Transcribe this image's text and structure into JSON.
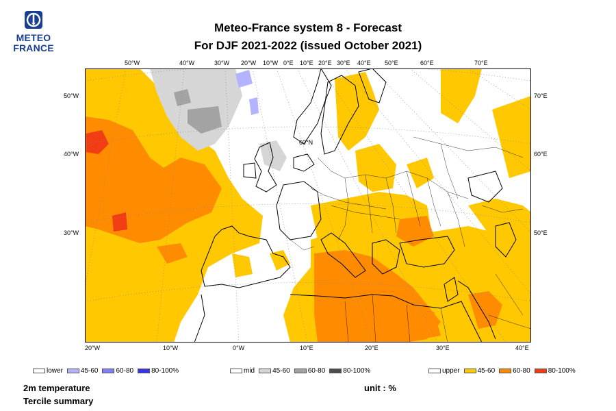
{
  "logo": {
    "line1": "METEO",
    "line2": "FRANCE"
  },
  "title": {
    "line1": "Meteo-France system 8  -  Forecast",
    "line2": "For DJF 2021-2022      (issued October 2021)"
  },
  "ticks": {
    "top": [
      "50°W",
      "40°W",
      "30°W",
      "20°W",
      "10°W",
      "0°E",
      "10°E",
      "20°E",
      "30°E",
      "40°E",
      "50°E",
      "60°E",
      "70°E"
    ],
    "bottom": [
      "20°W",
      "10°W",
      "0°W",
      "10°E",
      "20°E",
      "30°E",
      "40°E"
    ],
    "left": [
      "50°W",
      "40°W",
      "30°W"
    ],
    "right": [
      "70°E",
      "60°E",
      "50°E"
    ],
    "inner": "60°N"
  },
  "legend": {
    "lower": {
      "title": "lower",
      "items": [
        {
          "label": "45-60",
          "color": "#b3b3ff"
        },
        {
          "label": "60-80",
          "color": "#7f7fff"
        },
        {
          "label": "80-100%",
          "color": "#3535ee"
        }
      ]
    },
    "mid": {
      "title": "mid",
      "items": [
        {
          "label": "45-60",
          "color": "#d6d6d6"
        },
        {
          "label": "60-80",
          "color": "#a3a3a3"
        },
        {
          "label": "80-100%",
          "color": "#4d4d4d"
        }
      ]
    },
    "upper": {
      "title": "upper",
      "items": [
        {
          "label": "45-60",
          "color": "#ffc800"
        },
        {
          "label": "60-80",
          "color": "#ff8c00"
        },
        {
          "label": "80-100%",
          "color": "#f23c14"
        }
      ]
    }
  },
  "footer": {
    "variable": "2m temperature",
    "summary": "Tercile summary",
    "unit": "unit : %"
  },
  "colors": {
    "land_outline": "#000000",
    "grid": "#8a8a8a",
    "logo_blue": "#1a3f92"
  }
}
